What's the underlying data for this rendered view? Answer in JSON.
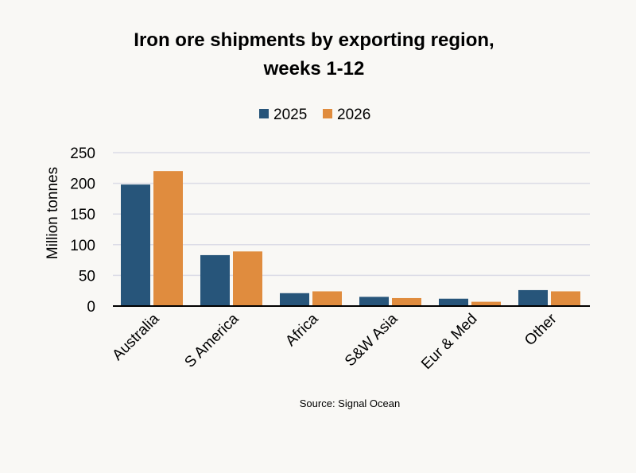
{
  "chart_data": {
    "type": "bar",
    "title_lines": [
      "Iron ore shipments by exporting region,",
      "weeks 1-12"
    ],
    "xlabel": "",
    "ylabel": "Million tonnes",
    "ylim": [
      0,
      250
    ],
    "yticks": [
      0,
      50,
      100,
      150,
      200,
      250
    ],
    "grid": true,
    "legend_position": "top-center",
    "categories": [
      "Australia",
      "S America",
      "Africa",
      "S&W Asia",
      "Eur & Med",
      "Other"
    ],
    "series": [
      {
        "name": "2025",
        "color": "#27557a",
        "values": [
          198,
          83,
          21,
          15,
          12,
          26
        ]
      },
      {
        "name": "2026",
        "color": "#e08c3e",
        "values": [
          220,
          89,
          24,
          13,
          7,
          24
        ]
      }
    ],
    "source": "Source: Signal Ocean"
  }
}
